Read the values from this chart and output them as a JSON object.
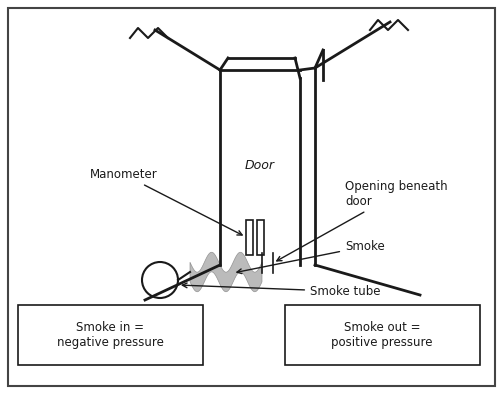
{
  "bg_color": "#ffffff",
  "border_color": "#444444",
  "line_color": "#1a1a1a",
  "smoke_color": "#b0b0b0",
  "door_label": "Door",
  "manometer_label": "Manometer",
  "opening_label": "Opening beneath\ndoor",
  "smoke_label": "Smoke",
  "smoke_tube_label": "Smoke tube",
  "box1_label": "Smoke in =\nnegative pressure",
  "box2_label": "Smoke out =\npositive pressure",
  "door_fontsize": 9,
  "label_fontsize": 8.5
}
